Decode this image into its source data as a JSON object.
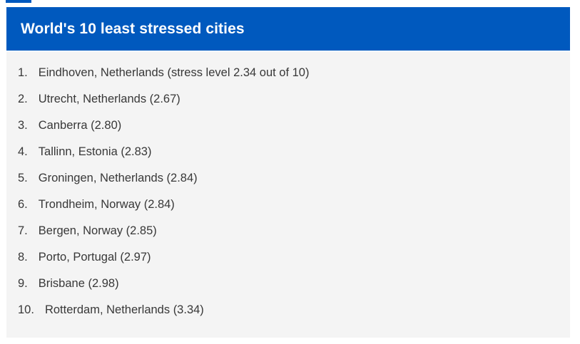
{
  "colors": {
    "accent_blue": "#0059BE",
    "body_bg": "#f4f4f4",
    "text": "#383838",
    "title_text": "#ffffff"
  },
  "header": {
    "title": "World's 10 least stressed cities"
  },
  "list": {
    "items": [
      {
        "rank": "1.",
        "label": "Eindhoven, Netherlands (stress level 2.34 out of 10)"
      },
      {
        "rank": "2.",
        "label": "Utrecht, Netherlands (2.67)"
      },
      {
        "rank": "3.",
        "label": "Canberra (2.80)"
      },
      {
        "rank": "4.",
        "label": "Tallinn, Estonia (2.83)"
      },
      {
        "rank": "5.",
        "label": "Groningen, Netherlands (2.84)"
      },
      {
        "rank": "6.",
        "label": "Trondheim, Norway (2.84)"
      },
      {
        "rank": "7.",
        "label": "Bergen, Norway (2.85)"
      },
      {
        "rank": "8.",
        "label": "Porto, Portugal (2.97)"
      },
      {
        "rank": "9.",
        "label": "Brisbane (2.98)"
      },
      {
        "rank": "10.",
        "label": "Rotterdam, Netherlands (3.34)"
      }
    ]
  },
  "chart_data": {
    "type": "table",
    "title": "World's 10 least stressed cities",
    "ranks": [
      1,
      2,
      3,
      4,
      5,
      6,
      7,
      8,
      9,
      10
    ],
    "categories": [
      "Eindhoven, Netherlands",
      "Utrecht, Netherlands",
      "Canberra",
      "Tallinn, Estonia",
      "Groningen, Netherlands",
      "Trondheim, Norway",
      "Bergen, Norway",
      "Porto, Portugal",
      "Brisbane",
      "Rotterdam, Netherlands"
    ],
    "values": [
      2.34,
      2.67,
      2.8,
      2.83,
      2.84,
      2.84,
      2.85,
      2.97,
      2.98,
      3.34
    ],
    "value_labels": [
      "2.34",
      "2.67",
      "2.80",
      "2.83",
      "2.84",
      "2.84",
      "2.85",
      "2.97",
      "2.98",
      "3.34"
    ],
    "value_unit": "stress level out of 10",
    "value_range": [
      0,
      10
    ]
  }
}
